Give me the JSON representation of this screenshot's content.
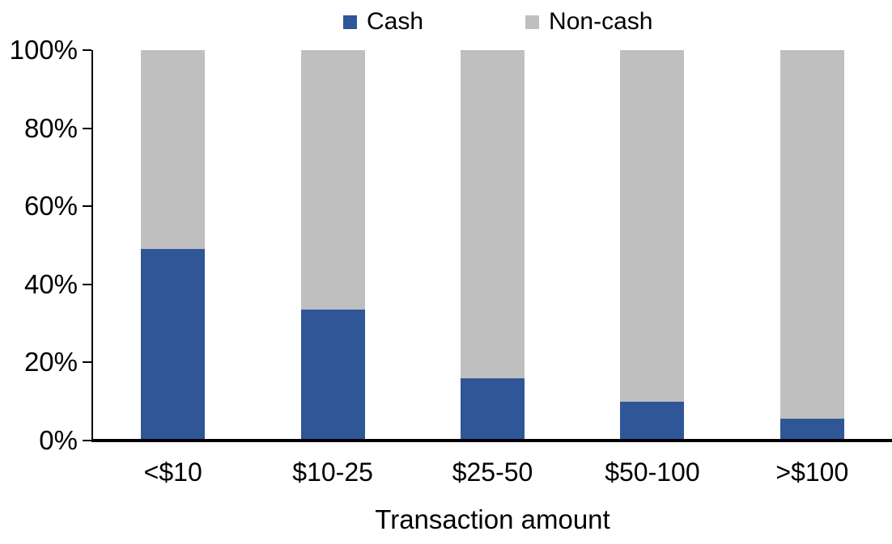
{
  "chart_data": {
    "type": "bar",
    "stacked": true,
    "title": "",
    "xlabel": "Transaction amount",
    "ylabel": "",
    "categories": [
      "<$10",
      "$10-25",
      "$25-50",
      "$50-100",
      ">$100"
    ],
    "series": [
      {
        "name": "Cash",
        "color": "#2F5696",
        "values": [
          49,
          33.5,
          16,
          10,
          5.5
        ]
      },
      {
        "name": "Non-cash",
        "color": "#BFBFBF",
        "values": [
          51,
          66.5,
          84,
          90,
          94.5
        ]
      }
    ],
    "ylim": [
      0,
      100
    ],
    "yticks": [
      {
        "value": 0,
        "label": "0%"
      },
      {
        "value": 20,
        "label": "20%"
      },
      {
        "value": 40,
        "label": "40%"
      },
      {
        "value": 60,
        "label": "60%"
      },
      {
        "value": 80,
        "label": "80%"
      },
      {
        "value": 100,
        "label": "100%"
      }
    ],
    "legend_position": "top",
    "grid": false,
    "axis_color": "#000000",
    "background_color": "#FFFFFF"
  }
}
